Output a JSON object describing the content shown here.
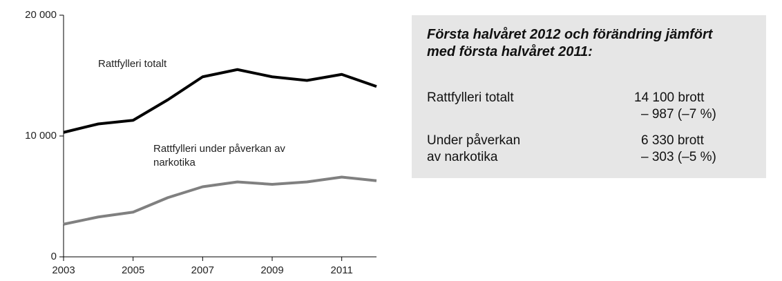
{
  "chart_data": {
    "type": "line",
    "x": [
      2003,
      2004,
      2005,
      2006,
      2007,
      2008,
      2009,
      2010,
      2011,
      2012
    ],
    "series": [
      {
        "name": "Rattfylleri totalt",
        "color": "#000000",
        "values": [
          10300,
          11000,
          11300,
          13000,
          14900,
          15500,
          14900,
          14600,
          15100,
          14100
        ]
      },
      {
        "name": "Rattfylleri under påverkan av narkotika",
        "color": "#808080",
        "values": [
          2700,
          3300,
          3700,
          4900,
          5800,
          6200,
          6000,
          6200,
          6600,
          6300
        ]
      }
    ],
    "xlim": [
      2003,
      2012
    ],
    "xticks": [
      2003,
      2005,
      2007,
      2009,
      2011
    ],
    "ylim": [
      0,
      20000
    ],
    "yticks": [
      0,
      {
        "value": 10000,
        "label": "10 000"
      },
      {
        "value": 20000,
        "label": "20 000"
      }
    ],
    "grid": false
  },
  "info_box": {
    "title": "Första halvåret 2012 och förändring jämfört med första halvåret 2011:",
    "rows": [
      {
        "label_lines": [
          "Rattfylleri totalt"
        ],
        "value": "14 100 brott",
        "change": "– 987 (–7 %)"
      },
      {
        "label_lines": [
          "Under påverkan",
          "av narkotika"
        ],
        "value": "6 330 brott",
        "change": "– 303 (–5 %)"
      }
    ]
  }
}
